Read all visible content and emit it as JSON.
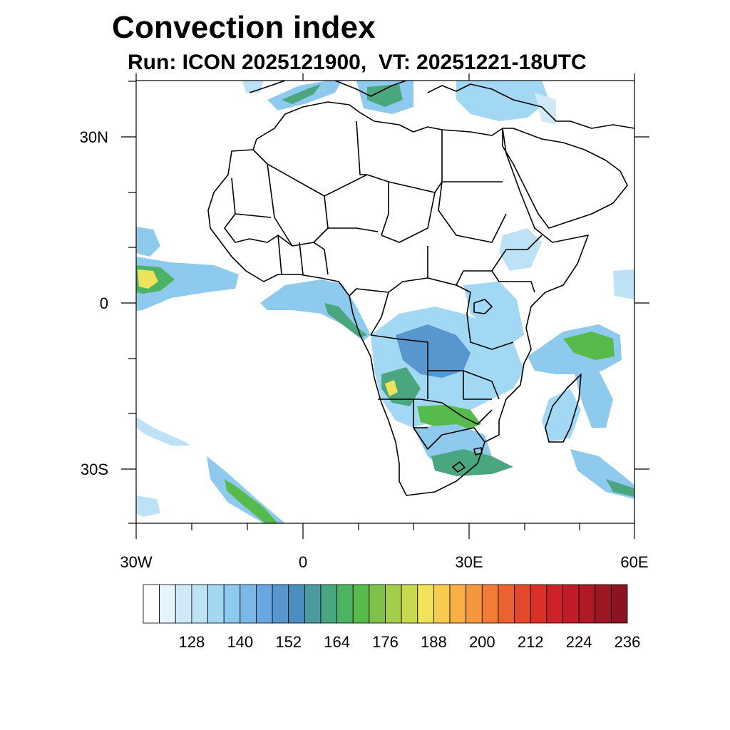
{
  "title": "Convection index",
  "subtitle": "Run: ICON 2025121900,  VT: 20251221-18UTC",
  "map": {
    "lat_labels": [
      "30N",
      "0",
      "30S"
    ],
    "lon_labels": [
      "30W",
      "0",
      "30E",
      "60E"
    ],
    "lat_range": [
      -40,
      40
    ],
    "lon_range": [
      -30,
      60
    ]
  },
  "colorbar": {
    "labels": [
      "128",
      "140",
      "152",
      "164",
      "176",
      "188",
      "200",
      "212",
      "224",
      "236"
    ],
    "colors": [
      "#ffffff",
      "#e6f4fc",
      "#cfe9f8",
      "#bde2f6",
      "#a3d8f4",
      "#8ec9ee",
      "#7cb8e6",
      "#6aa7de",
      "#5896cf",
      "#4a8fbf",
      "#4a9aa0",
      "#4aa67e",
      "#4cb364",
      "#56bb4a",
      "#7ec04a",
      "#a6cc4c",
      "#c9d94e",
      "#eee35a",
      "#f8cb4e",
      "#f8b048",
      "#f59640",
      "#f07c36",
      "#ea6230",
      "#e34a2c",
      "#d93128",
      "#cc2228",
      "#be1c28",
      "#ae1a26",
      "#9c1824",
      "#8a1420"
    ]
  }
}
